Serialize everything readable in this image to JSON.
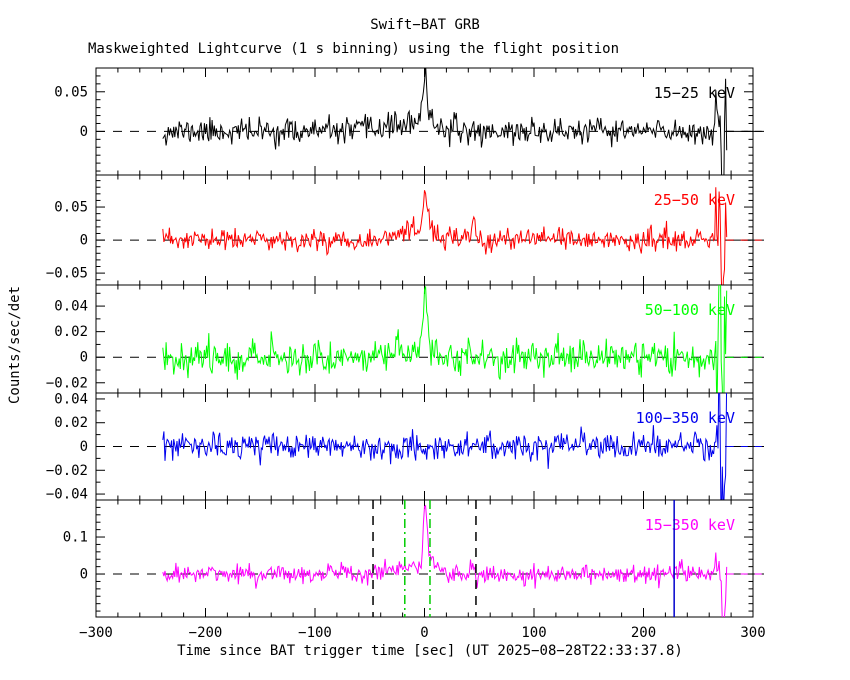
{
  "chart_data": {
    "type": "line",
    "title": "Swift−BAT GRB",
    "subtitle": "Maskweighted Lightcurve (1 s binning) using the flight position",
    "xlabel": "Time since BAT trigger time [sec] (UT 2025−08−28T22:33:37.8)",
    "ylabel": "Counts/sec/det",
    "xlim": [
      -300,
      300
    ],
    "xticks": [
      {
        "v": -300,
        "label": "−300"
      },
      {
        "v": -200,
        "label": "−200"
      },
      {
        "v": -100,
        "label": "−100"
      },
      {
        "v": 0,
        "label": "0"
      },
      {
        "v": 100,
        "label": "100"
      },
      {
        "v": 200,
        "label": "200"
      },
      {
        "v": 300,
        "label": "300"
      }
    ],
    "xtick_minor_step": 20,
    "bin_sec": 1,
    "data_t_start": -239,
    "data_t_end": 276,
    "grid": false,
    "legend_position": "inside-top-right-per-panel",
    "panels": [
      {
        "label": "15−25 keV",
        "color": "#000000",
        "ylim": [
          -0.055,
          0.08
        ],
        "yticks": [
          {
            "v": 0.05,
            "label": "0.05"
          },
          {
            "v": 0,
            "label": "0"
          }
        ],
        "ytick_minor_step": 0.01,
        "baseline": 0,
        "noise_sigma": 0.008,
        "seed": 11,
        "peak_time": 0,
        "peak_value": 0.07,
        "components": [
          {
            "t0": 0.5,
            "sig": 1.6,
            "amp": 0.055
          },
          {
            "t0": 4,
            "sig": 5,
            "amp": 0.016
          },
          {
            "t0": -18,
            "sig": 22,
            "amp": 0.009
          },
          {
            "t0": 269.5,
            "sig": 0.8,
            "amp": 0.04
          },
          {
            "t0": 272.5,
            "sig": 1.4,
            "amp": -0.055
          }
        ],
        "end_noise_boost": 4,
        "end_noise_start": 266
      },
      {
        "label": "25−50 keV",
        "color": "#ff0000",
        "ylim": [
          -0.068,
          0.0985
        ],
        "yticks": [
          {
            "v": 0.05,
            "label": "0.05"
          },
          {
            "v": 0,
            "label": "0"
          },
          {
            "v": -0.05,
            "label": "−0.05"
          }
        ],
        "ytick_minor_step": 0.01,
        "baseline": 0,
        "noise_sigma": 0.0085,
        "seed": 23,
        "peak_time": 0,
        "peak_value": 0.075,
        "components": [
          {
            "t0": 0.5,
            "sig": 1.5,
            "amp": 0.062
          },
          {
            "t0": 4,
            "sig": 5,
            "amp": 0.02
          },
          {
            "t0": -15,
            "sig": 20,
            "amp": 0.008
          },
          {
            "t0": 45,
            "sig": 1.2,
            "amp": 0.03
          },
          {
            "t0": 269.5,
            "sig": 0.8,
            "amp": 0.06
          },
          {
            "t0": 272.5,
            "sig": 1.4,
            "amp": -0.07
          }
        ],
        "end_noise_boost": 4,
        "end_noise_start": 266
      },
      {
        "label": "50−100 keV",
        "color": "#00ff00",
        "ylim": [
          -0.028,
          0.0565
        ],
        "yticks": [
          {
            "v": 0.04,
            "label": "0.04"
          },
          {
            "v": 0.02,
            "label": "0.02"
          },
          {
            "v": 0,
            "label": "0"
          },
          {
            "v": -0.02,
            "label": "−0.02"
          }
        ],
        "ytick_minor_step": 0.01,
        "baseline": 0,
        "noise_sigma": 0.0065,
        "seed": 37,
        "peak_time": 0,
        "peak_value": 0.05,
        "components": [
          {
            "t0": 0.5,
            "sig": 1.5,
            "amp": 0.04
          },
          {
            "t0": 3,
            "sig": 4,
            "amp": 0.012
          },
          {
            "t0": -15,
            "sig": 20,
            "amp": 0.004
          },
          {
            "t0": 269.5,
            "sig": 0.9,
            "amp": 0.055
          },
          {
            "t0": 272.5,
            "sig": 1.4,
            "amp": -0.028
          }
        ],
        "end_noise_boost": 4.5,
        "end_noise_start": 266
      },
      {
        "label": "100−350 keV",
        "color": "#0000ee",
        "ylim": [
          -0.045,
          0.045
        ],
        "yticks": [
          {
            "v": 0.04,
            "label": "0.04"
          },
          {
            "v": 0.02,
            "label": "0.02"
          },
          {
            "v": 0,
            "label": "0"
          },
          {
            "v": -0.02,
            "label": "−0.02"
          },
          {
            "v": -0.04,
            "label": "−0.04"
          }
        ],
        "ytick_minor_step": 0.01,
        "baseline": 0,
        "noise_sigma": 0.0055,
        "seed": 53,
        "peak_time": null,
        "peak_value": null,
        "components": [
          {
            "t0": 269.5,
            "sig": 0.8,
            "amp": 0.042
          },
          {
            "t0": 272.5,
            "sig": 1.3,
            "amp": -0.045
          }
        ],
        "end_noise_boost": 4.5,
        "end_noise_start": 266
      },
      {
        "label": "15−350 keV",
        "color": "#ff00ff",
        "ylim": [
          -0.116,
          0.2
        ],
        "yticks": [
          {
            "v": 0.1,
            "label": "0.1"
          },
          {
            "v": 0,
            "label": "0"
          }
        ],
        "ytick_minor_step": 0.02,
        "baseline": 0,
        "noise_sigma": 0.013,
        "seed": 71,
        "peak_time": 0,
        "peak_value": 0.18,
        "components": [
          {
            "t0": 0.5,
            "sig": 1.5,
            "amp": 0.15
          },
          {
            "t0": 4,
            "sig": 5,
            "amp": 0.04
          },
          {
            "t0": -18,
            "sig": 22,
            "amp": 0.016
          },
          {
            "t0": 45,
            "sig": 1.2,
            "amp": 0.02
          },
          {
            "t0": 269.5,
            "sig": 0.8,
            "amp": 0.09
          },
          {
            "t0": 272.5,
            "sig": 1.4,
            "amp": -0.105
          }
        ],
        "end_noise_boost": 4,
        "end_noise_start": 266
      }
    ],
    "markers": {
      "panel_index": 4,
      "vlines": [
        {
          "t": -47,
          "color": "#000000",
          "dash": "9,7",
          "width": 1.5,
          "name": "t90-start-line"
        },
        {
          "t": 47,
          "color": "#000000",
          "dash": "9,7",
          "width": 1.5,
          "name": "t90-end-line"
        },
        {
          "t": -18,
          "color": "#00cc00",
          "dash": "9,4,2,4",
          "width": 1.5,
          "name": "interval-start-line"
        },
        {
          "t": 5,
          "color": "#00cc00",
          "dash": "9,4,2,4",
          "width": 1.5,
          "name": "interval-end-line"
        },
        {
          "t": 228,
          "color": "#0000cc",
          "dash": "",
          "width": 1.5,
          "name": "slew-time-line"
        }
      ]
    }
  }
}
